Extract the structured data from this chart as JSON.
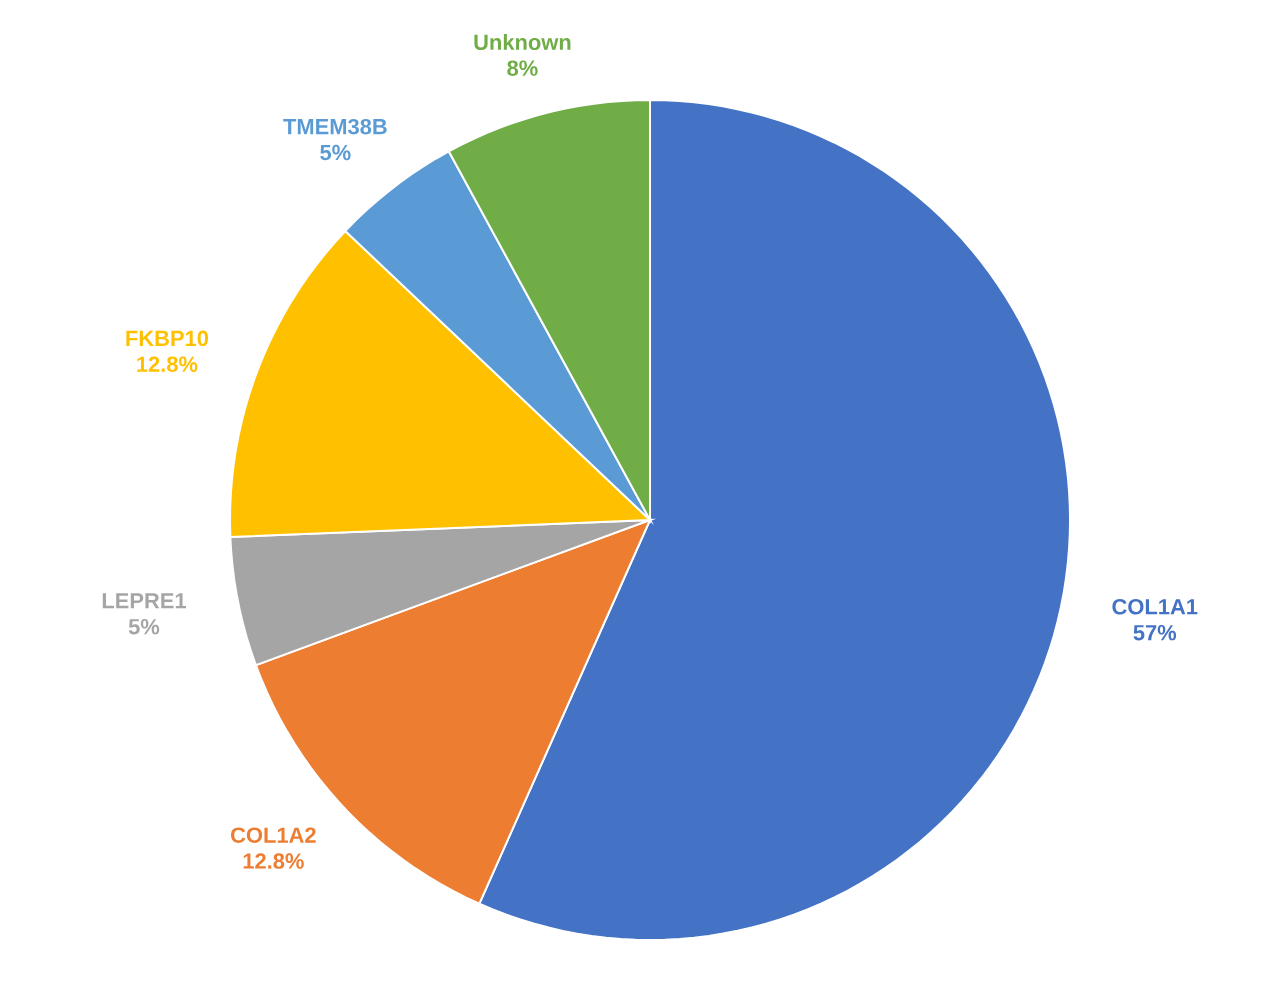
{
  "chart_data": {
    "type": "pie",
    "categories": [
      "COL1A1",
      "COL1A2",
      "LEPRE1",
      "FKBP10",
      "TMEM38B",
      "Unknown"
    ],
    "values": [
      57,
      12.8,
      5,
      12.8,
      5,
      8
    ],
    "value_labels": [
      "57%",
      "12.8%",
      "5%",
      "12.8%",
      "5%",
      "8%"
    ],
    "colors": [
      "#4472c4",
      "#ed7d31",
      "#a5a5a5",
      "#ffc000",
      "#5b9bd5",
      "#70ad47"
    ]
  }
}
